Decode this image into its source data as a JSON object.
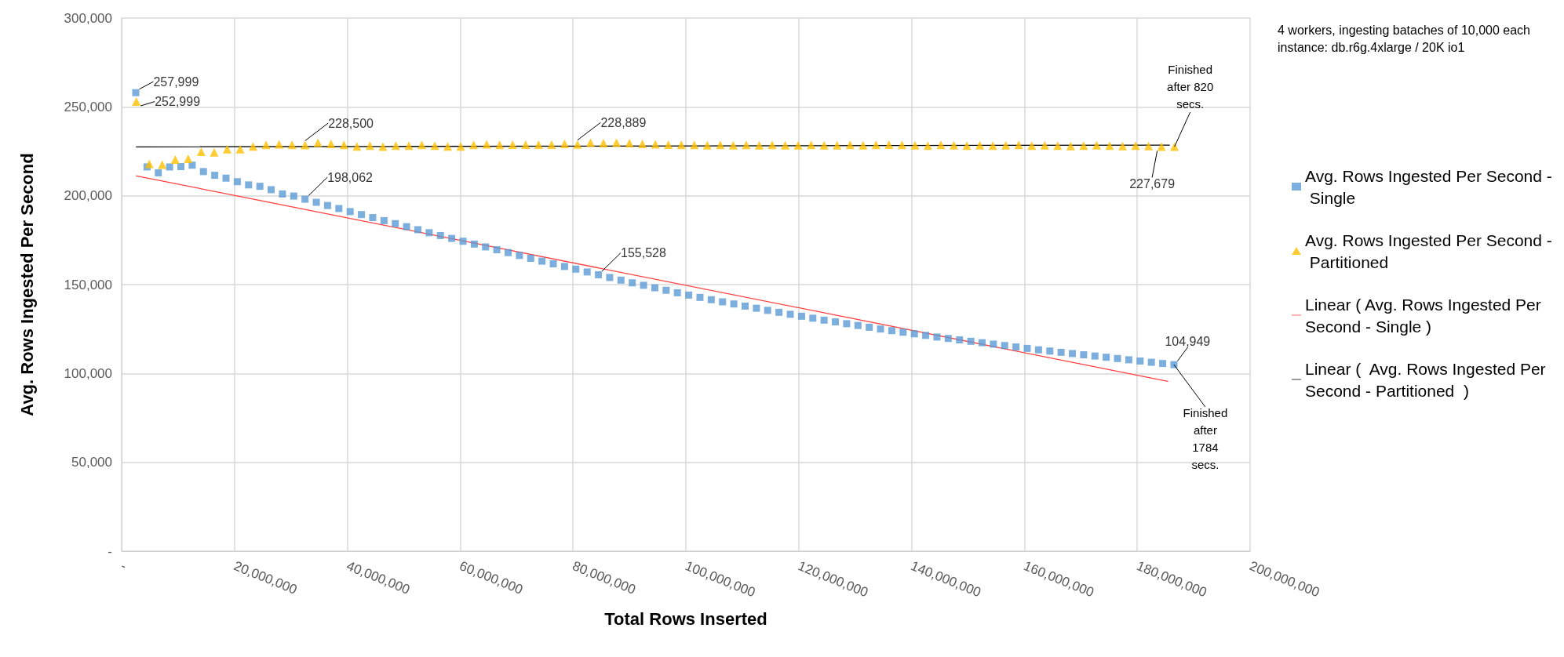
{
  "chart_data": {
    "type": "scatter",
    "xlabel": "Total Rows Inserted",
    "ylabel": "Avg. Rows Ingested Per Second",
    "xlim": [
      0,
      200000000
    ],
    "xticks": [
      {
        "value": 0,
        "label": "-"
      },
      {
        "value": 20000000,
        "label": "20,000,000"
      },
      {
        "value": 40000000,
        "label": "40,000,000"
      },
      {
        "value": 60000000,
        "label": "60,000,000"
      },
      {
        "value": 80000000,
        "label": "80,000,000"
      },
      {
        "value": 100000000,
        "label": "100,000,000"
      },
      {
        "value": 120000000,
        "label": "120,000,000"
      },
      {
        "value": 140000000,
        "label": "140,000,000"
      },
      {
        "value": 160000000,
        "label": "160,000,000"
      },
      {
        "value": 180000000,
        "label": "180,000,000"
      },
      {
        "value": 200000000,
        "label": "200,000,000"
      }
    ],
    "ylim": [
      0,
      300000
    ],
    "yticks": [
      {
        "value": 0,
        "label": "-"
      },
      {
        "value": 50000,
        "label": "50,000"
      },
      {
        "value": 100000,
        "label": "100,000"
      },
      {
        "value": 150000,
        "label": "150,000"
      },
      {
        "value": 200000,
        "label": "200,000"
      },
      {
        "value": 250000,
        "label": "250,000"
      },
      {
        "value": 300000,
        "label": "300,000"
      }
    ],
    "grid": true,
    "legend": "right",
    "annotations": [
      "4 workers, ingesting bataches of 10,000 each",
      "instance: db.r6g.4xlarge / 20K io1",
      {
        "text": "Finished after 820 secs.",
        "x": 186600000,
        "y": 227600
      },
      {
        "text": "Finished after 1784 secs.",
        "x": 186500000,
        "y": 104949
      }
    ],
    "series": [
      {
        "name": "Avg. Rows Ingested Per Second - Single",
        "type": "scatter",
        "marker": "square",
        "color": "#5b9bd5",
        "x": [
          2500000,
          4500000,
          6500000,
          8500000,
          10500000,
          12500000,
          14500000,
          16500000,
          18500000,
          20500000,
          22500000,
          24500000,
          26500000,
          28500000,
          30500000,
          32500000,
          34500000,
          36500000,
          38500000,
          40500000,
          42500000,
          44500000,
          46500000,
          48500000,
          50500000,
          52500000,
          54500000,
          56500000,
          58500000,
          60500000,
          62500000,
          64500000,
          66500000,
          68500000,
          70500000,
          72500000,
          74500000,
          76500000,
          78500000,
          80500000,
          82500000,
          84500000,
          86500000,
          88500000,
          90500000,
          92500000,
          94500000,
          96500000,
          98500000,
          100500000,
          102500000,
          104500000,
          106500000,
          108500000,
          110500000,
          112500000,
          114500000,
          116500000,
          118500000,
          120500000,
          122500000,
          124500000,
          126500000,
          128500000,
          130500000,
          132500000,
          134500000,
          136500000,
          138500000,
          140500000,
          142500000,
          144500000,
          146500000,
          148500000,
          150500000,
          152500000,
          154500000,
          156500000,
          158500000,
          160500000,
          162500000,
          164500000,
          166500000,
          168500000,
          170500000,
          172500000,
          174500000,
          176500000,
          178500000,
          180500000,
          182500000,
          184500000,
          186500000
        ],
        "values": [
          257999,
          216200,
          212900,
          216200,
          216400,
          217200,
          213600,
          211500,
          209900,
          207900,
          206100,
          205300,
          203400,
          201000,
          199800,
          198062,
          196300,
          194500,
          192800,
          191100,
          189400,
          187700,
          186000,
          184300,
          182600,
          180900,
          179200,
          177600,
          176000,
          174400,
          172800,
          171200,
          169600,
          168000,
          166400,
          164800,
          163200,
          161700,
          160200,
          158700,
          157100,
          155528,
          154000,
          152500,
          151000,
          149600,
          148200,
          146800,
          145400,
          144100,
          142800,
          141500,
          140300,
          139100,
          137900,
          136700,
          135500,
          134400,
          133300,
          132200,
          131100,
          130000,
          129000,
          128000,
          127000,
          126000,
          125000,
          124100,
          123200,
          122300,
          121400,
          120500,
          119700,
          118900,
          118100,
          117300,
          116500,
          115700,
          114900,
          114100,
          113300,
          112600,
          111900,
          111200,
          110500,
          109800,
          109100,
          108400,
          107700,
          107000,
          106300,
          105600,
          104949
        ],
        "value_labels": [
          "257,999",
          null,
          null,
          null,
          null,
          null,
          null,
          null,
          null,
          null,
          null,
          null,
          null,
          null,
          null,
          "198,062",
          null,
          null,
          null,
          null,
          null,
          null,
          null,
          null,
          null,
          null,
          null,
          null,
          null,
          null,
          null,
          null,
          null,
          null,
          null,
          null,
          null,
          null,
          null,
          null,
          null,
          "155,528",
          null,
          null,
          null,
          null,
          null,
          null,
          null,
          null,
          null,
          null,
          null,
          null,
          null,
          null,
          null,
          null,
          null,
          null,
          null,
          null,
          null,
          null,
          null,
          null,
          null,
          null,
          null,
          null,
          null,
          null,
          null,
          null,
          null,
          null,
          null,
          null,
          null,
          null,
          null,
          null,
          null,
          null,
          null,
          null,
          null,
          null,
          null,
          null,
          null,
          null,
          "104,949"
        ]
      },
      {
        "name": "Avg. Rows Ingested Per Second - Partitioned",
        "type": "scatter",
        "marker": "triangle",
        "color": "#ffc000",
        "x": [
          2600000,
          4900000,
          7200000,
          9500000,
          11800000,
          14100000,
          16400000,
          18700000,
          21000000,
          23300000,
          25600000,
          27900000,
          30200000,
          32500000,
          34800000,
          37100000,
          39400000,
          41700000,
          44000000,
          46300000,
          48600000,
          50900000,
          53200000,
          55500000,
          57800000,
          60100000,
          62400000,
          64700000,
          67000000,
          69300000,
          71600000,
          73900000,
          76200000,
          78500000,
          80800000,
          83100000,
          85400000,
          87700000,
          90000000,
          92300000,
          94600000,
          96900000,
          99200000,
          101500000,
          103800000,
          106100000,
          108400000,
          110700000,
          113000000,
          115300000,
          117600000,
          119900000,
          122200000,
          124500000,
          126800000,
          129100000,
          131400000,
          133700000,
          136000000,
          138300000,
          140600000,
          142900000,
          145200000,
          147500000,
          149800000,
          152100000,
          154400000,
          156700000,
          159000000,
          161300000,
          163600000,
          165900000,
          168200000,
          170500000,
          172800000,
          175100000,
          177400000,
          179700000,
          182000000,
          184300000,
          186600000
        ],
        "values": [
          252999,
          217900,
          217500,
          220400,
          220800,
          224800,
          224400,
          226200,
          226200,
          227800,
          228600,
          229000,
          228600,
          228500,
          229800,
          229200,
          228600,
          227800,
          228200,
          227600,
          228200,
          228200,
          228600,
          228200,
          227800,
          227800,
          228600,
          229000,
          228600,
          228800,
          228800,
          228800,
          228800,
          229200,
          228889,
          229800,
          229600,
          229800,
          229600,
          229200,
          229000,
          228800,
          228600,
          228600,
          228400,
          228600,
          228400,
          228600,
          228400,
          228600,
          228400,
          228400,
          228600,
          228400,
          228400,
          228600,
          228400,
          228600,
          228800,
          228600,
          228400,
          228200,
          228600,
          228400,
          228200,
          228400,
          228200,
          228400,
          228600,
          228200,
          228400,
          228200,
          228000,
          228200,
          228400,
          228200,
          228000,
          228200,
          228000,
          227679,
          227600
        ],
        "value_labels": [
          "252,999",
          null,
          null,
          null,
          null,
          null,
          null,
          null,
          null,
          null,
          null,
          null,
          null,
          "228,500",
          null,
          null,
          null,
          null,
          null,
          null,
          null,
          null,
          null,
          null,
          null,
          null,
          null,
          null,
          null,
          null,
          null,
          null,
          null,
          null,
          "228,889",
          null,
          null,
          null,
          null,
          null,
          null,
          null,
          null,
          null,
          null,
          null,
          null,
          null,
          null,
          null,
          null,
          null,
          null,
          null,
          null,
          null,
          null,
          null,
          null,
          null,
          null,
          null,
          null,
          null,
          null,
          null,
          null,
          null,
          null,
          null,
          null,
          null,
          null,
          null,
          null,
          null,
          null,
          null,
          null,
          "227,679",
          null
        ]
      },
      {
        "name": "Linear ( Avg. Rows Ingested Per Second - Single )",
        "type": "line",
        "marker": "none",
        "color": "#ff4040",
        "x": [
          2600000,
          185400000
        ],
        "values": [
          211200,
          95600
        ]
      },
      {
        "name": "Linear (  Avg. Rows Ingested Per Second - Partitioned  )",
        "type": "line",
        "marker": "none",
        "color": "#000000",
        "x": [
          2600000,
          185700000
        ],
        "values": [
          227500,
          228500
        ]
      }
    ]
  }
}
